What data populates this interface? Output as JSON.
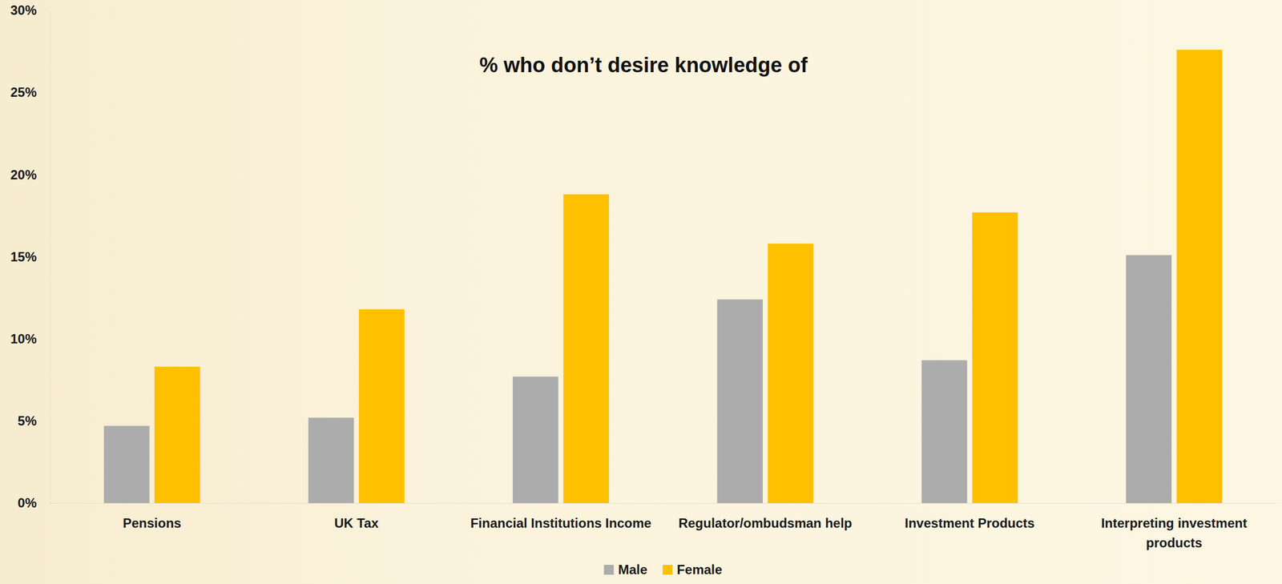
{
  "chart_data": {
    "type": "bar",
    "title": "% who don’t desire knowledge of",
    "categories": [
      "Pensions",
      "UK Tax",
      "Financial Institutions Income",
      "Regulator/ombudsman help",
      "Investment Products",
      "Interpreting investment products"
    ],
    "series": [
      {
        "name": "Male",
        "color": "#acacac",
        "values": [
          4.7,
          5.2,
          7.7,
          12.4,
          8.7,
          15.1
        ]
      },
      {
        "name": "Female",
        "color": "#ffc000",
        "values": [
          8.3,
          11.8,
          18.8,
          15.8,
          17.7,
          27.6
        ]
      }
    ],
    "ylim": [
      0,
      30
    ],
    "yticks": [
      {
        "value": 0,
        "label": "0%"
      },
      {
        "value": 5,
        "label": "5%"
      },
      {
        "value": 10,
        "label": "10%"
      },
      {
        "value": 15,
        "label": "15%"
      },
      {
        "value": 20,
        "label": "20%"
      },
      {
        "value": 25,
        "label": "25%"
      },
      {
        "value": 30,
        "label": "30%"
      }
    ],
    "grid": false,
    "legend": "bottom"
  }
}
